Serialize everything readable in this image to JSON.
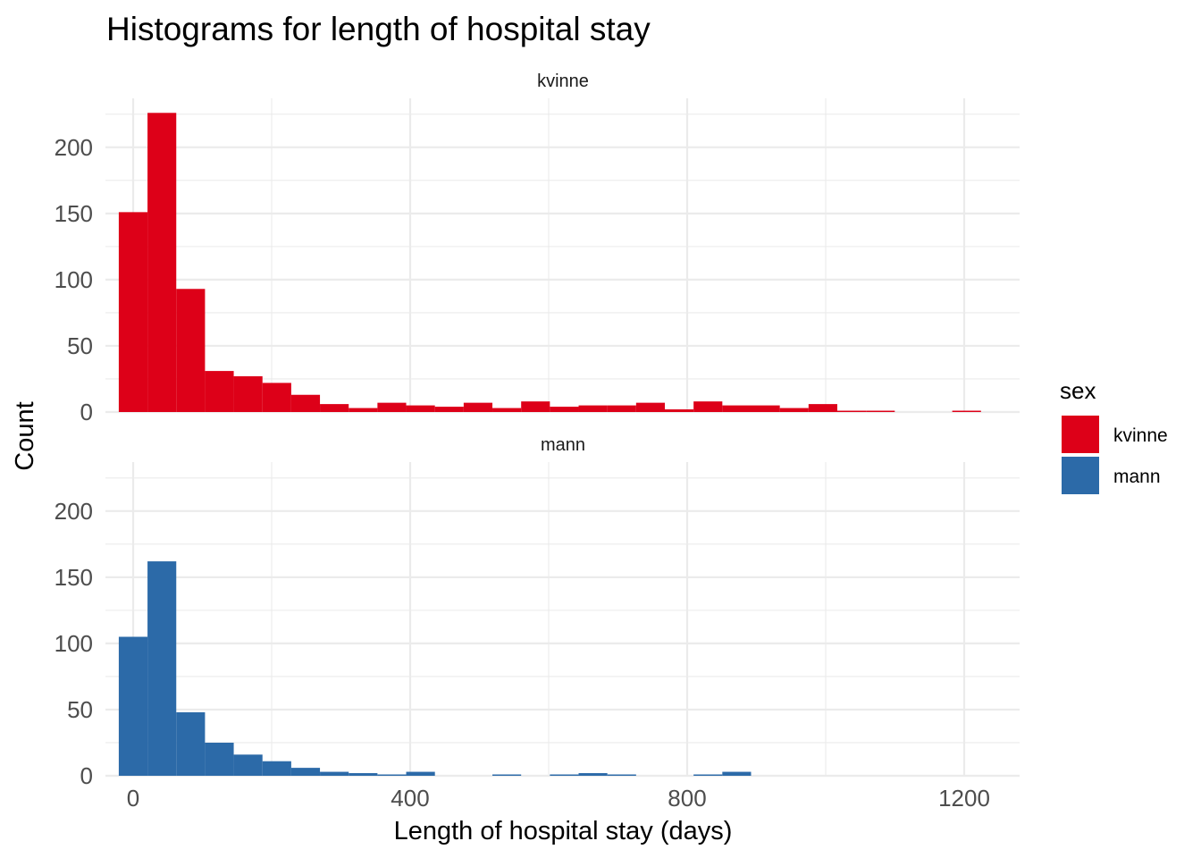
{
  "chart_data": {
    "type": "histogram",
    "title": "Histograms for length of hospital stay",
    "xlabel": "Length of hospital stay (days)",
    "ylabel": "Count",
    "xlim": [
      -40,
      1280
    ],
    "ylim": [
      0,
      237
    ],
    "x_ticks": [
      0,
      400,
      800,
      1200
    ],
    "y_ticks": [
      0,
      50,
      100,
      150,
      200
    ],
    "grid": true,
    "bin_width": 41.5,
    "bin_start": -20.75,
    "legend": {
      "title": "sex",
      "position": "right",
      "entries": [
        {
          "label": "kvinne",
          "color": "#dd0018"
        },
        {
          "label": "mann",
          "color": "#2c6aa8"
        }
      ]
    },
    "panels": [
      {
        "strip": "kvinne",
        "color": "#dd0018",
        "values": [
          151,
          226,
          93,
          31,
          27,
          22,
          13,
          6,
          3,
          7,
          5,
          4,
          7,
          3,
          8,
          4,
          5,
          5,
          7,
          2,
          8,
          5,
          5,
          3,
          6,
          1,
          1,
          0,
          0,
          1
        ]
      },
      {
        "strip": "mann",
        "color": "#2c6aa8",
        "values": [
          105,
          162,
          48,
          25,
          16,
          11,
          6,
          3,
          2,
          1,
          3,
          0,
          0,
          1,
          0,
          1,
          2,
          1,
          0,
          0,
          1,
          3,
          0,
          0,
          0,
          0,
          0,
          0,
          0,
          0
        ]
      }
    ]
  }
}
